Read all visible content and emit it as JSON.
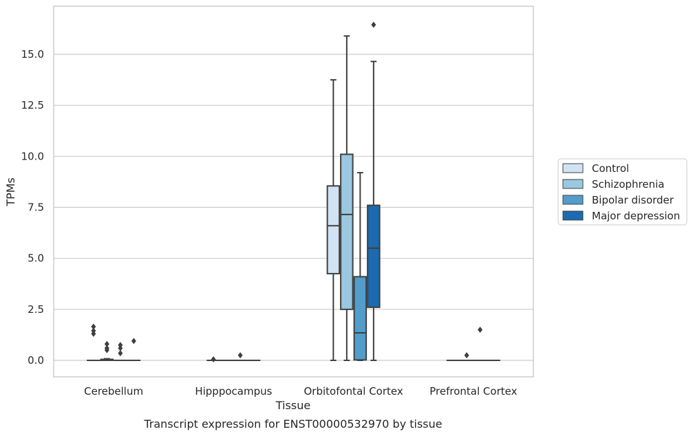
{
  "chart_data": {
    "type": "box",
    "caption": "Transcript expression for ENST00000532970 by tissue",
    "xlabel": "Tissue",
    "ylabel": "TPMs",
    "ylim": [
      -0.8,
      16.9
    ],
    "yticks": [
      0.0,
      2.5,
      5.0,
      7.5,
      10.0,
      12.5,
      15.0
    ],
    "ytick_labels": [
      "0.0",
      "2.5",
      "5.0",
      "7.5",
      "10.0",
      "12.5",
      "15.0"
    ],
    "grid": true,
    "legend_position": "right",
    "categories": [
      "Cerebellum",
      "Hipppocampus",
      "Orbitofontal Cortex",
      "Prefrontal Cortex"
    ],
    "series": [
      {
        "name": "Control",
        "color": "#d1e3f3",
        "boxes": [
          {
            "whislo": 0,
            "q1": 0,
            "med": 0,
            "q3": 0,
            "whishi": 0,
            "fliers": []
          },
          {
            "whislo": 0,
            "q1": 0,
            "med": 0,
            "q3": 0,
            "whishi": 0,
            "fliers": [
              0.05
            ]
          },
          {
            "whislo": 0,
            "q1": 4.25,
            "med": 6.6,
            "q3": 8.55,
            "whishi": 13.75,
            "fliers": []
          },
          {
            "whislo": 0,
            "q1": 0,
            "med": 0,
            "q3": 0,
            "whishi": 0,
            "fliers": []
          }
        ]
      },
      {
        "name": "Schizophrenia",
        "color": "#9ac8e0",
        "boxes": [
          {
            "whislo": 0,
            "q1": 0,
            "med": 0,
            "q3": 0.05,
            "whishi": 0.08,
            "fliers": [
              0.5,
              0.6,
              0.8
            ]
          },
          {
            "whislo": 0,
            "q1": 0,
            "med": 0,
            "q3": 0,
            "whishi": 0,
            "fliers": []
          },
          {
            "whislo": 0,
            "q1": 2.5,
            "med": 7.15,
            "q3": 10.1,
            "whishi": 15.9,
            "fliers": []
          },
          {
            "whislo": 0,
            "q1": 0,
            "med": 0,
            "q3": 0,
            "whishi": 0,
            "fliers": [
              0.25
            ]
          }
        ]
      },
      {
        "name": "Bipolar disorder",
        "color": "#529dcc",
        "boxes": [
          {
            "whislo": 0,
            "q1": 0,
            "med": 0,
            "q3": 0,
            "whishi": 0,
            "fliers": [
              0.35,
              0.6,
              0.75
            ]
          },
          {
            "whislo": 0,
            "q1": 0,
            "med": 0,
            "q3": 0,
            "whishi": 0,
            "fliers": [
              0.25
            ]
          },
          {
            "whislo": 0,
            "q1": 0.02,
            "med": 1.35,
            "q3": 4.1,
            "whishi": 9.2,
            "fliers": []
          },
          {
            "whislo": 0,
            "q1": 0,
            "med": 0,
            "q3": 0,
            "whishi": 0,
            "fliers": [
              1.5
            ]
          }
        ]
      },
      {
        "name": "Major depression",
        "color": "#1c6aaf",
        "boxes": [
          {
            "whislo": 0,
            "q1": 0,
            "med": 0,
            "q3": 0,
            "whishi": 0,
            "fliers": [
              0.95
            ]
          },
          {
            "whislo": 0,
            "q1": 0,
            "med": 0,
            "q3": 0,
            "whishi": 0,
            "fliers": []
          },
          {
            "whislo": 0,
            "q1": 2.6,
            "med": 5.5,
            "q3": 7.6,
            "whishi": 14.65,
            "fliers": [
              16.45
            ]
          },
          {
            "whislo": 0,
            "q1": 0,
            "med": 0,
            "q3": 0,
            "whishi": 0,
            "fliers": []
          }
        ]
      }
    ],
    "extra_fliers": [
      {
        "category": 0,
        "series": 0,
        "values": [
          1.3,
          1.45,
          1.65
        ]
      }
    ]
  }
}
